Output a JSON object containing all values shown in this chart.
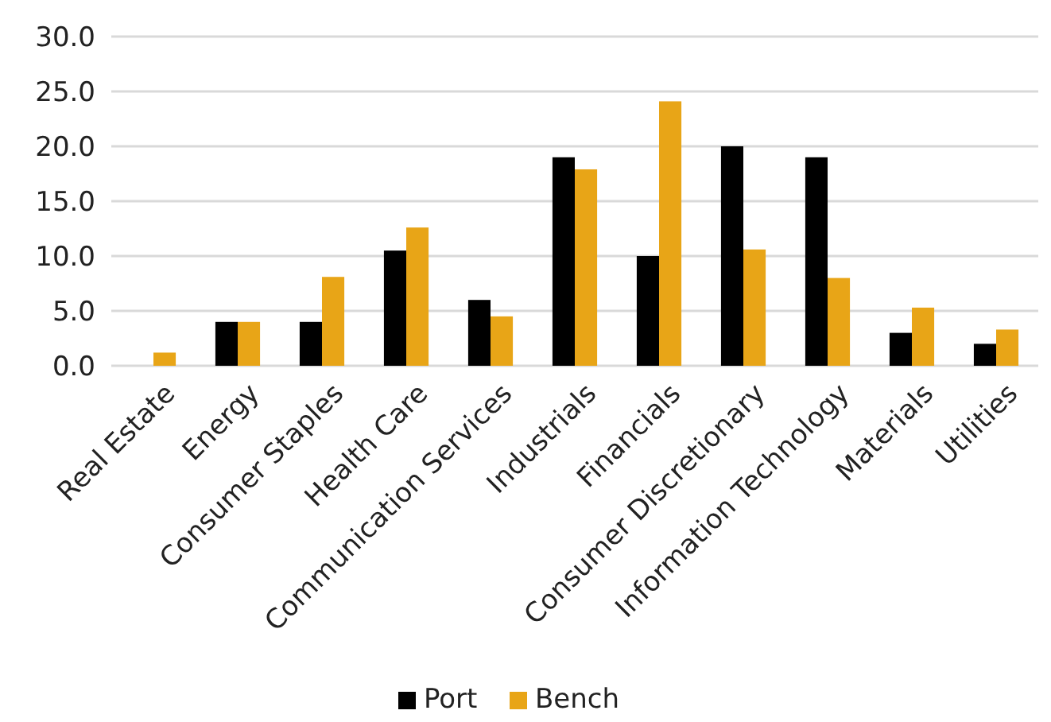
{
  "chart_data": {
    "type": "bar",
    "categories": [
      "Real Estate",
      "Energy",
      "Consumer Staples",
      "Health Care",
      "Communication Services",
      "Industrials",
      "Financials",
      "Consumer Discretionary",
      "Information Technology",
      "Materials",
      "Utilities"
    ],
    "series": [
      {
        "name": "Port",
        "color": "#000000",
        "values": [
          0,
          4,
          4,
          10.5,
          6,
          19,
          10,
          20,
          19,
          3,
          2
        ]
      },
      {
        "name": "Bench",
        "color": "#e8a517",
        "values": [
          1.2,
          4,
          8.1,
          12.6,
          4.5,
          17.9,
          24.1,
          10.6,
          8,
          5.3,
          3.3
        ]
      }
    ],
    "ylim": [
      0,
      30
    ],
    "yticks": [
      {
        "value": 0,
        "label": "0.0"
      },
      {
        "value": 5,
        "label": "5.0"
      },
      {
        "value": 10,
        "label": "10.0"
      },
      {
        "value": 15,
        "label": "15.0"
      },
      {
        "value": 20,
        "label": "20.0"
      },
      {
        "value": 25,
        "label": "25.0"
      },
      {
        "value": 30,
        "label": "30.0"
      }
    ],
    "grid": "y",
    "legend": "bottom"
  }
}
